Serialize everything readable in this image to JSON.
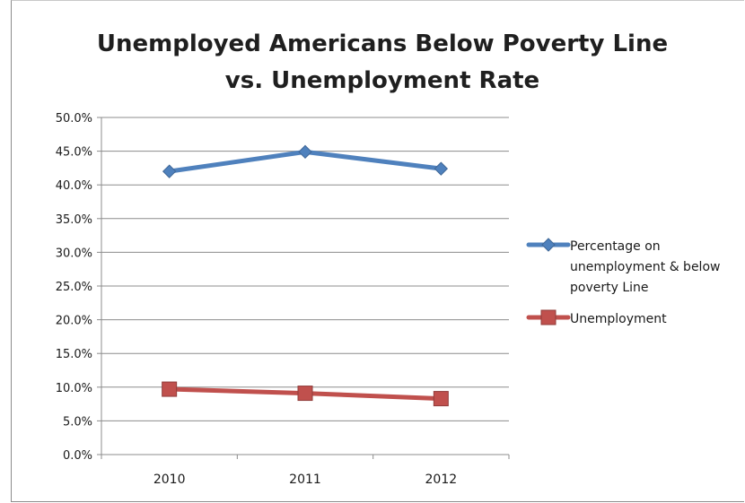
{
  "chart_data": {
    "type": "line",
    "title_lines": [
      "Unemployed Americans Below Poverty Line",
      "vs. Unemployment Rate"
    ],
    "xlabel": "",
    "ylabel": "",
    "categories": [
      "2010",
      "2011",
      "2012"
    ],
    "ylim": [
      0,
      50
    ],
    "ytick_values": [
      0,
      5,
      10,
      15,
      20,
      25,
      30,
      35,
      40,
      45,
      50
    ],
    "ytick_labels": [
      "0.0%",
      "5.0%",
      "10.0%",
      "15.0%",
      "20.0%",
      "25.0%",
      "30.0%",
      "35.0%",
      "40.0%",
      "45.0%",
      "50.0%"
    ],
    "grid": "horizontal",
    "legend_position": "right",
    "series": [
      {
        "name": "Percentage on unemployment & below poverty Line",
        "legend_lines": [
          "Percentage on",
          "unemployment & below",
          "poverty Line"
        ],
        "values": [
          42.0,
          44.9,
          42.4
        ],
        "color": "#4f81bd",
        "marker": "diamond"
      },
      {
        "name": "Unemployment",
        "legend_lines": [
          "Unemployment"
        ],
        "values": [
          9.7,
          9.1,
          8.3
        ],
        "color": "#c0504d",
        "marker": "square"
      }
    ]
  }
}
